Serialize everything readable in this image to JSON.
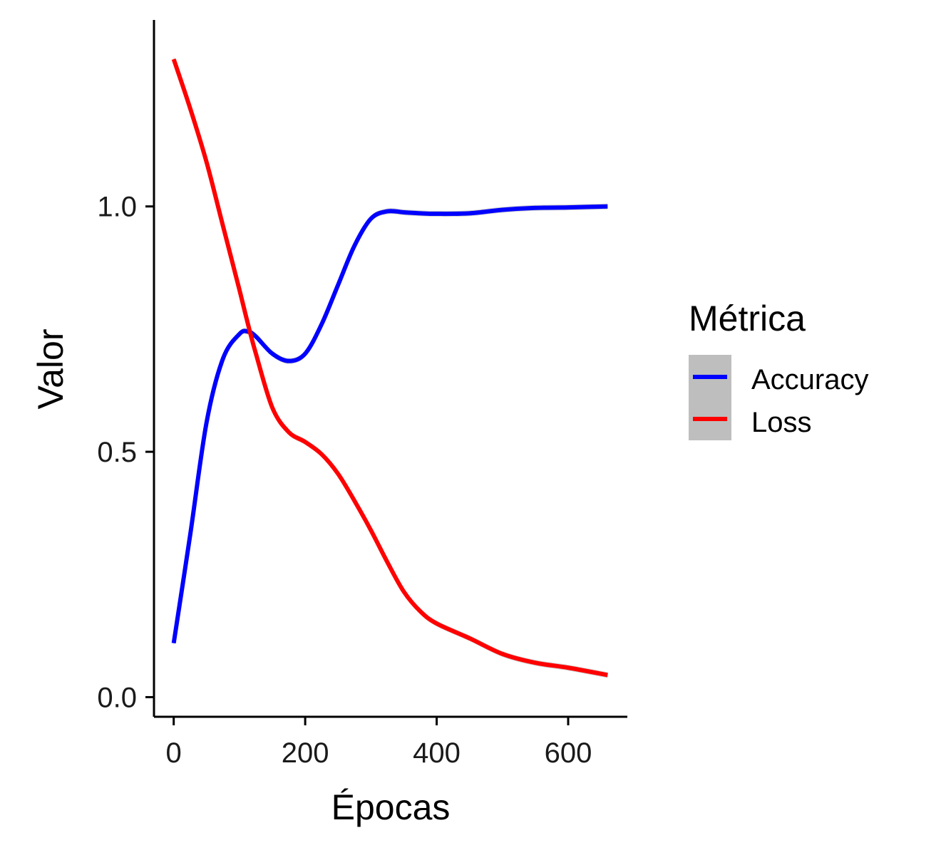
{
  "chart_data": {
    "type": "line",
    "xlabel": "Épocas",
    "ylabel": "Valor",
    "x_ticks": [
      0,
      200,
      400,
      600
    ],
    "y_ticks": [
      0.0,
      0.5,
      1.0
    ],
    "y_tick_labels": [
      "0.0",
      "0.5",
      "1.0"
    ],
    "x_tick_labels": [
      "0",
      "200",
      "400",
      "600"
    ],
    "xlim": [
      -30,
      690
    ],
    "ylim": [
      -0.04,
      1.38
    ],
    "grid": false,
    "legend": {
      "title": "Métrica",
      "position": "right"
    },
    "x": [
      0,
      25,
      50,
      75,
      100,
      113,
      125,
      150,
      175,
      200,
      225,
      250,
      275,
      300,
      325,
      350,
      375,
      400,
      450,
      500,
      550,
      600,
      660
    ],
    "series": [
      {
        "name": "Accuracy",
        "color": "#0000ff",
        "values": [
          0.11,
          0.33,
          0.56,
          0.69,
          0.74,
          0.745,
          0.735,
          0.7,
          0.685,
          0.7,
          0.76,
          0.84,
          0.92,
          0.975,
          0.99,
          0.988,
          0.986,
          0.985,
          0.986,
          0.993,
          0.997,
          0.998,
          1.0
        ]
      },
      {
        "name": "Loss",
        "color": "#ff0000",
        "values": [
          1.3,
          1.2,
          1.09,
          0.96,
          0.83,
          0.76,
          0.7,
          0.59,
          0.54,
          0.52,
          0.495,
          0.455,
          0.4,
          0.34,
          0.275,
          0.215,
          0.175,
          0.15,
          0.12,
          0.088,
          0.07,
          0.06,
          0.045
        ]
      }
    ]
  }
}
